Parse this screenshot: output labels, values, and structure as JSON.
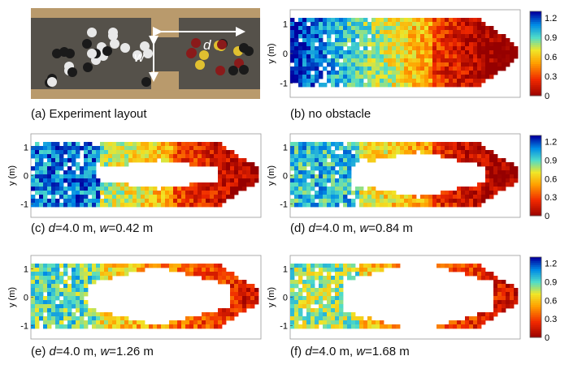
{
  "panels": {
    "a": {
      "prefix": "(a) ",
      "text": "Experiment layout"
    },
    "b": {
      "prefix": "(b) ",
      "text": "no obstacle"
    },
    "c": {
      "prefix": "(c) ",
      "d_label": "d",
      "d_val": "=4.0 m, ",
      "w_label": "w",
      "w_val": "=0.42 m"
    },
    "d": {
      "prefix": "(d) ",
      "d_label": "d",
      "d_val": "=4.0 m, ",
      "w_label": "w",
      "w_val": "=0.84 m"
    },
    "e": {
      "prefix": "(e) ",
      "d_label": "d",
      "d_val": "=4.0 m, ",
      "w_label": "w",
      "w_val": "=1.26 m"
    },
    "f": {
      "prefix": "(f) ",
      "d_label": "d",
      "d_val": "=4.0 m, ",
      "w_label": "w",
      "w_val": "=1.68 m"
    }
  },
  "photo": {
    "d_marker": "d",
    "w_marker": "w"
  },
  "axis": {
    "ylabel": "y (m)",
    "yticks": [
      "1",
      "0",
      "-1"
    ]
  },
  "colorbar": {
    "ticks": [
      "1.2",
      "0.9",
      "0.6",
      "0.3",
      "0"
    ]
  },
  "colors": {
    "high": "#0000a0",
    "mid": "#30c8c8",
    "low_mid": "#f0d020",
    "low": "#a00000"
  }
}
